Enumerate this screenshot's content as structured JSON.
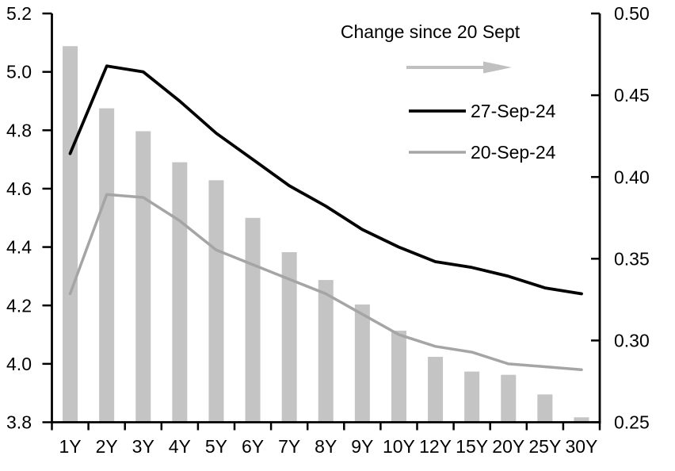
{
  "chart_data": {
    "type": "combo",
    "title": "",
    "categories": [
      "1Y",
      "2Y",
      "3Y",
      "4Y",
      "5Y",
      "6Y",
      "7Y",
      "8Y",
      "9Y",
      "10Y",
      "12Y",
      "15Y",
      "20Y",
      "25Y",
      "30Y"
    ],
    "series": [
      {
        "name": "Change since 20 Sept",
        "type": "bar",
        "axis": "right",
        "color": "#c4c4c4",
        "values": [
          0.48,
          0.442,
          0.428,
          0.409,
          0.398,
          0.375,
          0.354,
          0.337,
          0.322,
          0.306,
          0.29,
          0.281,
          0.279,
          0.267,
          0.253
        ]
      },
      {
        "name": "27-Sep-24",
        "type": "line",
        "axis": "left",
        "color": "#000000",
        "values": [
          4.72,
          5.02,
          5.0,
          4.9,
          4.79,
          4.7,
          4.61,
          4.54,
          4.46,
          4.4,
          4.35,
          4.33,
          4.3,
          4.26,
          4.24
        ]
      },
      {
        "name": "20-Sep-24",
        "type": "line",
        "axis": "left",
        "color": "#a5a5a5",
        "values": [
          4.24,
          4.58,
          4.57,
          4.49,
          4.39,
          4.34,
          4.29,
          4.24,
          4.17,
          4.1,
          4.06,
          4.04,
          4.0,
          3.99,
          3.98
        ]
      }
    ],
    "left_axis": {
      "min": 3.8,
      "max": 5.2,
      "step": 0.2,
      "tick_labels": [
        "5.2",
        "5.0",
        "4.8",
        "4.6",
        "4.4",
        "4.2",
        "4.0",
        "3.8"
      ]
    },
    "right_axis": {
      "min": 0.25,
      "max": 0.5,
      "step": 0.05,
      "tick_labels": [
        "0.50",
        "0.45",
        "0.40",
        "0.35",
        "0.30",
        "0.25"
      ]
    },
    "legend": {
      "position": "top-right-inside",
      "arrow_color": "#c0c0c0"
    },
    "grid": false,
    "axis_color": "#000000"
  }
}
